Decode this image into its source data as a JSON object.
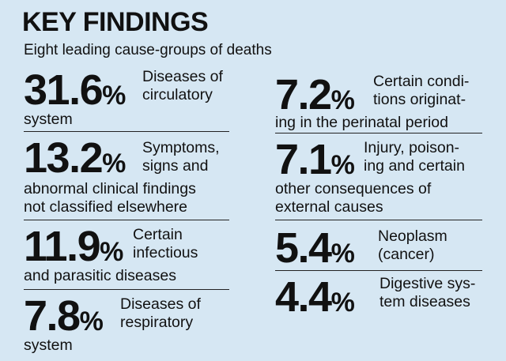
{
  "title": "KEY FINDINGS",
  "subtitle": "Eight leading cause-groups of deaths",
  "left": [
    {
      "pct": "31.6",
      "desc": "Diseases of\ncirculatory",
      "cont": "system"
    },
    {
      "pct": "13.2",
      "desc": "Symptoms,\nsigns and",
      "cont": "abnormal clinical findings\nnot classified elsewhere"
    },
    {
      "pct": "11.9",
      "desc": "Certain\ninfectious",
      "cont": "and parasitic diseases"
    },
    {
      "pct": "7.8",
      "desc": "Diseases of\nrespiratory",
      "cont": "system"
    }
  ],
  "right": [
    {
      "pct": "7.2",
      "desc": "Certain condi-\ntions originat-",
      "cont": "ing in the perinatal period"
    },
    {
      "pct": "7.1",
      "desc": "Injury, poison-\ning and certain",
      "cont": "other consequences of\nexternal causes"
    },
    {
      "pct": "5.4",
      "desc": "Neoplasm\n(cancer)",
      "cont": ""
    },
    {
      "pct": "4.4",
      "desc": "Digestive sys-\ntem diseases",
      "cont": ""
    }
  ],
  "percent_sign": "%"
}
